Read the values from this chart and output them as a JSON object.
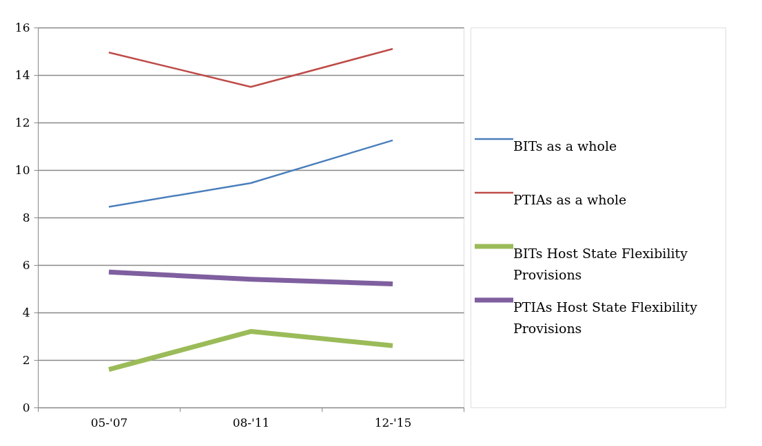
{
  "chart_data": {
    "type": "line",
    "categories": [
      "05-'07",
      "08-'11",
      "12-'15"
    ],
    "series": [
      {
        "name": "BITs as a whole",
        "color": "#4a7ebb",
        "values": [
          8.45,
          9.45,
          11.25
        ]
      },
      {
        "name": "PTIAs as a whole",
        "color": "#be4b48",
        "values": [
          14.95,
          13.5,
          15.1
        ]
      },
      {
        "name": "BITs Host State Flexibility Provisions",
        "color": "#9bbb59",
        "values": [
          1.6,
          3.2,
          2.6
        ]
      },
      {
        "name": "PTIAs Host State Flexibility Provisions",
        "color": "#7f5f9f",
        "values": [
          5.7,
          5.4,
          5.2
        ]
      }
    ],
    "ylim": [
      0,
      16
    ],
    "yticks": [
      0,
      2,
      4,
      6,
      8,
      10,
      12,
      14,
      16
    ],
    "grid": "y",
    "legend": "right",
    "marker": "none",
    "line_style": "solid"
  }
}
